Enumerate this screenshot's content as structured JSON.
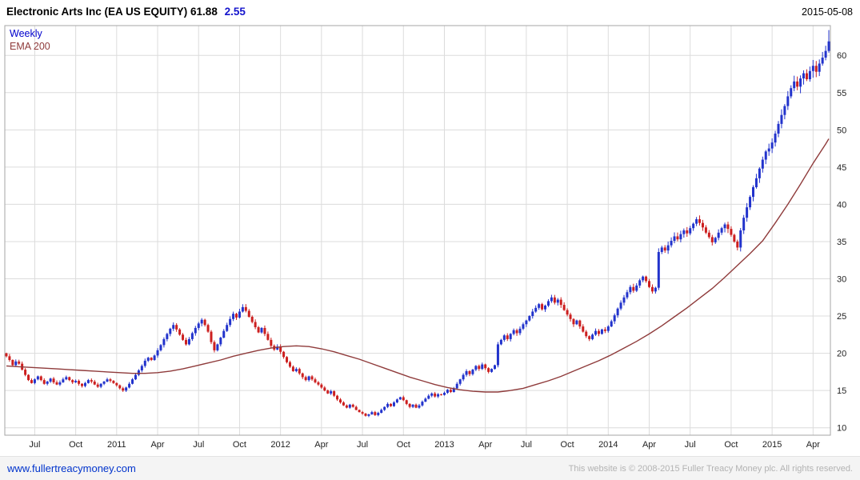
{
  "header": {
    "title": "Electronic Arts Inc (EA US EQUITY) 61.88",
    "change": "2.55",
    "date": "2015-05-08"
  },
  "legend": {
    "weekly": "Weekly",
    "ema": "EMA 200"
  },
  "footer": {
    "link": "www.fullertreacymoney.com",
    "copyright": "This website is © 2008-2015 Fuller Treacy Money plc. All rights reserved."
  },
  "colors": {
    "up": "#2233cc",
    "down": "#cc1f1f",
    "ema": "#8f3b3b",
    "grid": "#dcdcdc",
    "border": "#a6a6a6",
    "axis_text": "#222222",
    "change_text": "#1414cc",
    "link": "#0033cc"
  },
  "chart_data": {
    "type": "candlestick",
    "title": "Electronic Arts Inc (EA US EQUITY)",
    "timeframe": "Weekly",
    "overlay": "EMA 200",
    "last_price": 61.88,
    "change": 2.55,
    "as_of": "2015-05-08",
    "ylim": [
      9,
      64
    ],
    "y_ticks": [
      10,
      15,
      20,
      25,
      30,
      35,
      40,
      45,
      50,
      55,
      60
    ],
    "x_ticks": [
      {
        "week": 9,
        "label": "Jul"
      },
      {
        "week": 22,
        "label": "Oct"
      },
      {
        "week": 35,
        "label": "2011"
      },
      {
        "week": 48,
        "label": "Apr"
      },
      {
        "week": 61,
        "label": "Jul"
      },
      {
        "week": 74,
        "label": "Oct"
      },
      {
        "week": 87,
        "label": "2012"
      },
      {
        "week": 100,
        "label": "Apr"
      },
      {
        "week": 113,
        "label": "Jul"
      },
      {
        "week": 126,
        "label": "Oct"
      },
      {
        "week": 139,
        "label": "2013"
      },
      {
        "week": 152,
        "label": "Apr"
      },
      {
        "week": 165,
        "label": "Jul"
      },
      {
        "week": 178,
        "label": "Oct"
      },
      {
        "week": 191,
        "label": "2014"
      },
      {
        "week": 204,
        "label": "Apr"
      },
      {
        "week": 217,
        "label": "Jul"
      },
      {
        "week": 230,
        "label": "Oct"
      },
      {
        "week": 243,
        "label": "2015"
      },
      {
        "week": 256,
        "label": "Apr"
      }
    ],
    "wick_pct": 1.2,
    "final_candle_high": 63.4,
    "weekly_closes": [
      19.6,
      19.1,
      18.4,
      18.9,
      18.6,
      17.8,
      17.1,
      16.4,
      16.0,
      16.5,
      16.9,
      16.4,
      15.9,
      16.2,
      16.6,
      16.1,
      15.8,
      16.1,
      16.5,
      16.8,
      16.4,
      16.1,
      16.3,
      15.9,
      15.6,
      16.0,
      16.4,
      16.2,
      15.8,
      15.5,
      15.9,
      16.2,
      16.5,
      16.3,
      16.0,
      15.7,
      15.3,
      15.0,
      15.4,
      15.9,
      16.5,
      17.1,
      17.7,
      18.3,
      19.0,
      19.4,
      19.1,
      19.7,
      20.4,
      21.1,
      21.9,
      22.6,
      23.3,
      23.8,
      23.2,
      22.5,
      21.8,
      21.2,
      21.9,
      22.7,
      23.4,
      24.0,
      24.5,
      23.8,
      22.9,
      21.5,
      20.4,
      21.2,
      22.1,
      23.0,
      23.8,
      24.6,
      25.3,
      24.8,
      25.6,
      26.2,
      25.7,
      24.9,
      24.2,
      23.5,
      22.8,
      23.4,
      22.6,
      21.8,
      21.0,
      20.5,
      20.9,
      20.2,
      19.5,
      18.8,
      18.2,
      17.6,
      17.9,
      17.3,
      16.8,
      16.4,
      16.9,
      16.5,
      16.1,
      15.8,
      15.4,
      15.0,
      14.6,
      14.9,
      14.3,
      13.8,
      13.4,
      13.0,
      12.7,
      13.1,
      12.8,
      12.4,
      12.1,
      11.9,
      11.6,
      11.8,
      12.1,
      11.7,
      12.0,
      12.4,
      12.8,
      13.2,
      12.9,
      13.4,
      13.8,
      14.1,
      13.7,
      13.2,
      12.8,
      13.1,
      12.7,
      13.0,
      13.5,
      13.9,
      14.3,
      14.6,
      14.2,
      14.5,
      14.4,
      14.7,
      15.1,
      14.8,
      15.3,
      15.9,
      16.5,
      17.1,
      17.6,
      17.2,
      17.8,
      18.3,
      17.9,
      18.5,
      18.0,
      17.5,
      17.9,
      18.4,
      21.2,
      21.8,
      22.4,
      21.9,
      22.6,
      23.1,
      22.7,
      23.3,
      23.9,
      24.4,
      25.0,
      25.6,
      26.1,
      26.6,
      25.9,
      26.4,
      27.0,
      27.5,
      26.8,
      27.2,
      26.5,
      25.8,
      25.2,
      24.6,
      23.9,
      24.4,
      23.6,
      22.9,
      22.3,
      21.9,
      22.5,
      23.0,
      22.6,
      23.2,
      23.0,
      23.6,
      24.3,
      25.1,
      26.0,
      26.8,
      27.5,
      28.2,
      28.9,
      28.4,
      29.1,
      29.8,
      30.3,
      29.7,
      28.9,
      28.3,
      28.8,
      33.6,
      34.2,
      33.8,
      34.5,
      35.1,
      35.7,
      35.3,
      36.0,
      36.5,
      36.1,
      36.8,
      37.4,
      38.0,
      37.5,
      36.9,
      36.2,
      35.6,
      34.9,
      35.5,
      36.2,
      36.8,
      37.3,
      36.7,
      35.9,
      35.0,
      34.2,
      36.5,
      38.2,
      39.6,
      41.0,
      42.3,
      43.5,
      44.8,
      46.0,
      47.1,
      47.5,
      48.3,
      49.5,
      50.8,
      52.0,
      53.2,
      54.5,
      55.6,
      56.5,
      55.8,
      56.9,
      57.6,
      56.8,
      57.9,
      58.6,
      57.8,
      58.9,
      59.7,
      60.6,
      61.88
    ],
    "ema200": {
      "points": [
        [
          0,
          18.3
        ],
        [
          4,
          18.2
        ],
        [
          8,
          18.1
        ],
        [
          12,
          18.0
        ],
        [
          16,
          17.9
        ],
        [
          20,
          17.8
        ],
        [
          24,
          17.7
        ],
        [
          28,
          17.6
        ],
        [
          32,
          17.5
        ],
        [
          36,
          17.4
        ],
        [
          40,
          17.3
        ],
        [
          44,
          17.3
        ],
        [
          48,
          17.4
        ],
        [
          52,
          17.6
        ],
        [
          56,
          17.9
        ],
        [
          60,
          18.3
        ],
        [
          64,
          18.7
        ],
        [
          68,
          19.1
        ],
        [
          72,
          19.6
        ],
        [
          76,
          20.0
        ],
        [
          80,
          20.4
        ],
        [
          84,
          20.7
        ],
        [
          88,
          20.9
        ],
        [
          92,
          21.0
        ],
        [
          96,
          20.9
        ],
        [
          100,
          20.6
        ],
        [
          104,
          20.2
        ],
        [
          108,
          19.7
        ],
        [
          112,
          19.2
        ],
        [
          116,
          18.6
        ],
        [
          120,
          18.0
        ],
        [
          124,
          17.4
        ],
        [
          128,
          16.8
        ],
        [
          132,
          16.3
        ],
        [
          136,
          15.8
        ],
        [
          140,
          15.4
        ],
        [
          144,
          15.1
        ],
        [
          148,
          14.9
        ],
        [
          152,
          14.8
        ],
        [
          156,
          14.8
        ],
        [
          160,
          15.0
        ],
        [
          164,
          15.3
        ],
        [
          168,
          15.8
        ],
        [
          172,
          16.3
        ],
        [
          176,
          16.9
        ],
        [
          180,
          17.6
        ],
        [
          184,
          18.3
        ],
        [
          188,
          19.0
        ],
        [
          192,
          19.8
        ],
        [
          196,
          20.7
        ],
        [
          200,
          21.6
        ],
        [
          204,
          22.6
        ],
        [
          208,
          23.7
        ],
        [
          212,
          24.9
        ],
        [
          216,
          26.1
        ],
        [
          220,
          27.4
        ],
        [
          224,
          28.7
        ],
        [
          228,
          30.2
        ],
        [
          232,
          31.8
        ],
        [
          236,
          33.4
        ],
        [
          240,
          35.1
        ],
        [
          244,
          37.5
        ],
        [
          248,
          40.0
        ],
        [
          252,
          42.7
        ],
        [
          256,
          45.5
        ],
        [
          260,
          48.1
        ],
        [
          261,
          48.8
        ]
      ]
    }
  }
}
